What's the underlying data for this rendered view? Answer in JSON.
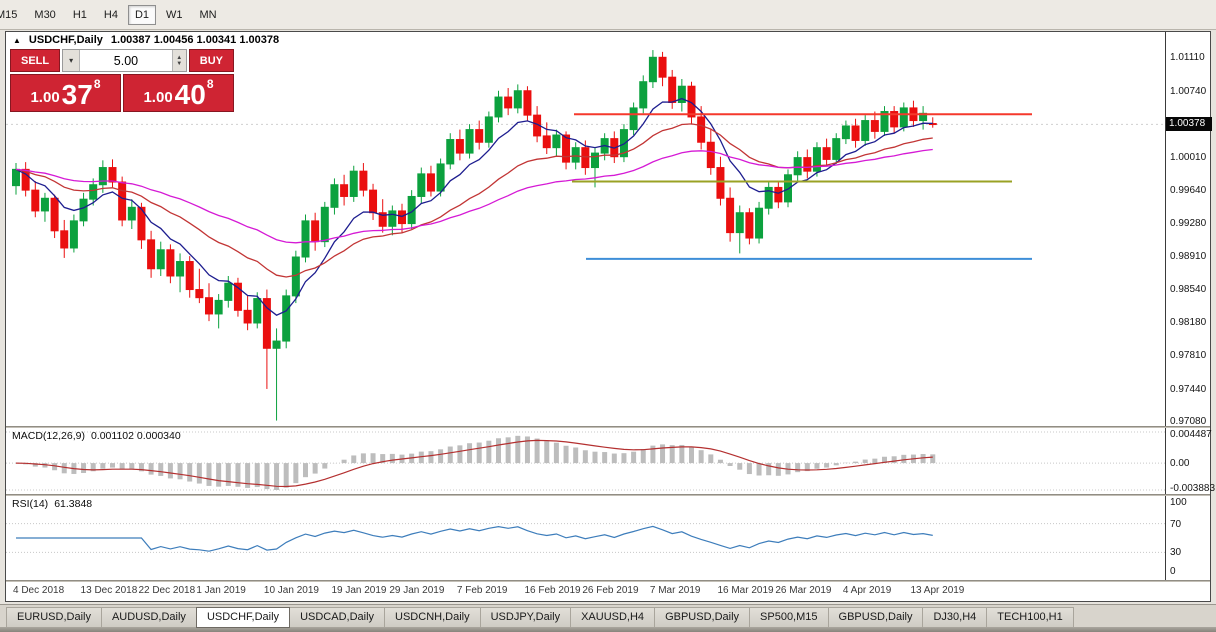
{
  "toolbar": {
    "timeframes": [
      {
        "label": "M15",
        "active": false
      },
      {
        "label": "M30",
        "active": false
      },
      {
        "label": "H1",
        "active": false
      },
      {
        "label": "H4",
        "active": false
      },
      {
        "label": "D1",
        "active": true
      },
      {
        "label": "W1",
        "active": false
      },
      {
        "label": "MN",
        "active": false
      }
    ]
  },
  "title": {
    "arrow": "▲",
    "symbol": "USDCHF,Daily",
    "ohlc": "1.00387 1.00456 1.00341 1.00378"
  },
  "trade": {
    "sell_label": "SELL",
    "buy_label": "BUY",
    "volume": "5.00",
    "sell_price": {
      "prefix": "1.00",
      "big": "37",
      "sup": "8"
    },
    "buy_price": {
      "prefix": "1.00",
      "big": "40",
      "sup": "8"
    },
    "accent": "#cf2433"
  },
  "chart_data": {
    "type": "candlestick",
    "symbol": "USDCHF",
    "timeframe": "Daily",
    "ohlc_display": {
      "open": "1.00387",
      "high": "1.00456",
      "low": "1.00341",
      "close": "1.00378"
    },
    "ylim": [
      0.9704,
      1.014
    ],
    "price_ticks": [
      "1.01110",
      "1.00740",
      "1.00370",
      "1.00010",
      "0.99640",
      "0.99280",
      "0.98910",
      "0.98540",
      "0.98180",
      "0.97810",
      "0.97440",
      "0.97080"
    ],
    "current_price": 1.00378,
    "current_price_label": "1.00378",
    "up_color": "#0ca13e",
    "down_color": "#ea0f0f",
    "moving_averages": [
      {
        "period": 8,
        "color": "#1d1d8f",
        "width": 1.3
      },
      {
        "period": 22,
        "color": "#c23535",
        "width": 1.3
      },
      {
        "period": 45,
        "color": "#d51ad5",
        "width": 1.3
      }
    ],
    "hlines": [
      {
        "price": 1.0049,
        "color": "#f5392c",
        "width": 2,
        "x1": 0.49,
        "x2": 0.885
      },
      {
        "price": 0.99745,
        "color": "#9aa224",
        "width": 2,
        "x1": 0.488,
        "x2": 0.868
      },
      {
        "price": 0.9889,
        "color": "#3e8ed8",
        "width": 2,
        "x1": 0.5,
        "x2": 0.885
      }
    ],
    "date_labels": [
      {
        "label": "4 Dec 2018",
        "bar": 0
      },
      {
        "label": "13 Dec 2018",
        "bar": 7
      },
      {
        "label": "22 Dec 2018",
        "bar": 13
      },
      {
        "label": "1 Jan 2019",
        "bar": 19
      },
      {
        "label": "10 Jan 2019",
        "bar": 26
      },
      {
        "label": "19 Jan 2019",
        "bar": 33
      },
      {
        "label": "29 Jan 2019",
        "bar": 39
      },
      {
        "label": "7 Feb 2019",
        "bar": 46
      },
      {
        "label": "16 Feb 2019",
        "bar": 53
      },
      {
        "label": "26 Feb 2019",
        "bar": 59
      },
      {
        "label": "7 Mar 2019",
        "bar": 66
      },
      {
        "label": "16 Mar 2019",
        "bar": 73
      },
      {
        "label": "26 Mar 2019",
        "bar": 79
      },
      {
        "label": "4 Apr 2019",
        "bar": 86
      },
      {
        "label": "13 Apr 2019",
        "bar": 93
      }
    ],
    "candles": [
      [
        0.997,
        0.9995,
        0.996,
        0.9988
      ],
      [
        0.9988,
        0.9996,
        0.9958,
        0.9965
      ],
      [
        0.9965,
        0.9975,
        0.9935,
        0.9942
      ],
      [
        0.9942,
        0.9962,
        0.993,
        0.9956
      ],
      [
        0.9956,
        0.996,
        0.9912,
        0.992
      ],
      [
        0.992,
        0.9932,
        0.989,
        0.9901
      ],
      [
        0.9901,
        0.9938,
        0.9896,
        0.9931
      ],
      [
        0.9931,
        0.9962,
        0.9925,
        0.9955
      ],
      [
        0.9955,
        0.9978,
        0.9948,
        0.9971
      ],
      [
        0.9971,
        0.9998,
        0.9962,
        0.999
      ],
      [
        0.999,
        0.9999,
        0.9968,
        0.9974
      ],
      [
        0.9974,
        0.998,
        0.9925,
        0.9932
      ],
      [
        0.9932,
        0.9955,
        0.9922,
        0.9946
      ],
      [
        0.9946,
        0.9951,
        0.99,
        0.991
      ],
      [
        0.991,
        0.992,
        0.9868,
        0.9878
      ],
      [
        0.9878,
        0.9908,
        0.987,
        0.9899
      ],
      [
        0.9899,
        0.9905,
        0.9862,
        0.987
      ],
      [
        0.987,
        0.9895,
        0.9852,
        0.9886
      ],
      [
        0.9886,
        0.9892,
        0.9846,
        0.9855
      ],
      [
        0.9855,
        0.9878,
        0.984,
        0.9846
      ],
      [
        0.9846,
        0.9862,
        0.982,
        0.9828
      ],
      [
        0.9828,
        0.985,
        0.9812,
        0.9843
      ],
      [
        0.9843,
        0.987,
        0.9835,
        0.9862
      ],
      [
        0.9862,
        0.9868,
        0.9825,
        0.9832
      ],
      [
        0.9832,
        0.9848,
        0.981,
        0.9818
      ],
      [
        0.9818,
        0.9852,
        0.9812,
        0.9845
      ],
      [
        0.9845,
        0.9855,
        0.9745,
        0.979
      ],
      [
        0.979,
        0.9812,
        0.971,
        0.9798
      ],
      [
        0.9798,
        0.9855,
        0.979,
        0.9848
      ],
      [
        0.9848,
        0.9898,
        0.984,
        0.9891
      ],
      [
        0.9891,
        0.9938,
        0.9885,
        0.9931
      ],
      [
        0.9931,
        0.994,
        0.9898,
        0.9908
      ],
      [
        0.9908,
        0.9952,
        0.9902,
        0.9946
      ],
      [
        0.9946,
        0.9978,
        0.9938,
        0.9971
      ],
      [
        0.9971,
        0.9982,
        0.9948,
        0.9958
      ],
      [
        0.9958,
        0.9992,
        0.9952,
        0.9986
      ],
      [
        0.9986,
        0.9995,
        0.9958,
        0.9965
      ],
      [
        0.9965,
        0.9972,
        0.9932,
        0.994
      ],
      [
        0.994,
        0.9955,
        0.9918,
        0.9925
      ],
      [
        0.9925,
        0.9948,
        0.9915,
        0.9942
      ],
      [
        0.9942,
        0.995,
        0.9918,
        0.9928
      ],
      [
        0.9928,
        0.9965,
        0.9922,
        0.9958
      ],
      [
        0.9958,
        0.999,
        0.995,
        0.9983
      ],
      [
        0.9983,
        0.9992,
        0.9958,
        0.9964
      ],
      [
        0.9964,
        1.0,
        0.9958,
        0.9994
      ],
      [
        0.9994,
        1.0028,
        0.9988,
        1.0021
      ],
      [
        1.0021,
        1.0032,
        0.9998,
        1.0006
      ],
      [
        1.0006,
        1.0038,
        1.0,
        1.0032
      ],
      [
        1.0032,
        1.0042,
        1.001,
        1.0018
      ],
      [
        1.0018,
        1.0052,
        1.0012,
        1.0046
      ],
      [
        1.0046,
        1.0075,
        1.004,
        1.0068
      ],
      [
        1.0068,
        1.0078,
        1.0048,
        1.0056
      ],
      [
        1.0056,
        1.0082,
        1.005,
        1.0075
      ],
      [
        1.0075,
        1.008,
        1.0042,
        1.0048
      ],
      [
        1.0048,
        1.0058,
        1.0018,
        1.0025
      ],
      [
        1.0025,
        1.004,
        1.0005,
        1.0012
      ],
      [
        1.0012,
        1.0032,
        1.0002,
        1.0026
      ],
      [
        1.0026,
        1.003,
        0.9988,
        0.9996
      ],
      [
        0.9996,
        1.0018,
        0.9988,
        1.0012
      ],
      [
        1.0012,
        1.002,
        0.9982,
        0.999
      ],
      [
        0.999,
        1.0012,
        0.9968,
        1.0006
      ],
      [
        1.0006,
        1.0028,
        0.9998,
        1.0022
      ],
      [
        1.0022,
        1.003,
        0.9995,
        1.0002
      ],
      [
        1.0002,
        1.0038,
        0.9996,
        1.0032
      ],
      [
        1.0032,
        1.0062,
        1.0026,
        1.0056
      ],
      [
        1.0056,
        1.0092,
        1.005,
        1.0085
      ],
      [
        1.0085,
        1.012,
        1.0078,
        1.0112
      ],
      [
        1.0112,
        1.0118,
        1.008,
        1.009
      ],
      [
        1.009,
        1.0098,
        1.0055,
        1.0062
      ],
      [
        1.0062,
        1.0088,
        1.0052,
        1.008
      ],
      [
        1.008,
        1.0085,
        1.0038,
        1.0046
      ],
      [
        1.0046,
        1.0058,
        1.001,
        1.0018
      ],
      [
        1.0018,
        1.0032,
        0.9982,
        0.999
      ],
      [
        0.999,
        1.0002,
        0.9948,
        0.9956
      ],
      [
        0.9956,
        0.9968,
        0.9908,
        0.9918
      ],
      [
        0.9918,
        0.9948,
        0.9895,
        0.994
      ],
      [
        0.994,
        0.9945,
        0.9905,
        0.9912
      ],
      [
        0.9912,
        0.9952,
        0.9906,
        0.9945
      ],
      [
        0.9945,
        0.9975,
        0.9938,
        0.9968
      ],
      [
        0.9968,
        0.9975,
        0.9945,
        0.9952
      ],
      [
        0.9952,
        0.9988,
        0.9946,
        0.9982
      ],
      [
        0.9982,
        1.0008,
        0.9975,
        1.0001
      ],
      [
        1.0001,
        1.001,
        0.9978,
        0.9986
      ],
      [
        0.9986,
        1.0018,
        0.998,
        1.0012
      ],
      [
        1.0012,
        1.0022,
        0.9992,
        0.9999
      ],
      [
        0.9999,
        1.0028,
        0.9994,
        1.0022
      ],
      [
        1.0022,
        1.0042,
        1.0016,
        1.0036
      ],
      [
        1.0036,
        1.0044,
        1.0012,
        1.002
      ],
      [
        1.002,
        1.0048,
        1.0014,
        1.0042
      ],
      [
        1.0042,
        1.0052,
        1.0022,
        1.003
      ],
      [
        1.003,
        1.0058,
        1.0025,
        1.0052
      ],
      [
        1.0052,
        1.0058,
        1.0028,
        1.0035
      ],
      [
        1.0035,
        1.0062,
        1.003,
        1.0056
      ],
      [
        1.0056,
        1.0064,
        1.0035,
        1.0042
      ],
      [
        1.0042,
        1.0058,
        1.0032,
        1.005
      ],
      [
        1.00387,
        1.00456,
        1.00341,
        1.00378
      ]
    ]
  },
  "macd": {
    "label": "MACD(12,26,9)",
    "value_text": "0.001102 0.000340",
    "fast": 12,
    "slow": 26,
    "signal": 9,
    "ylim": [
      -0.003883,
      0.004487
    ],
    "axis_ticks": [
      "0.004487",
      "0.00",
      "-0.003883"
    ],
    "histogram_color": "#bdbdbd",
    "signal_color": "#b43030"
  },
  "rsi": {
    "label": "RSI(14)",
    "value_text": "61.3848",
    "period": 14,
    "levels": [
      100,
      70,
      30,
      0
    ],
    "dotted_levels": [
      70,
      30
    ],
    "line_color": "#3d7dbb"
  },
  "tabs": {
    "items": [
      {
        "label": "EURUSD,Daily",
        "active": false
      },
      {
        "label": "AUDUSD,Daily",
        "active": false
      },
      {
        "label": "USDCHF,Daily",
        "active": true
      },
      {
        "label": "USDCAD,Daily",
        "active": false
      },
      {
        "label": "USDCNH,Daily",
        "active": false
      },
      {
        "label": "USDJPY,Daily",
        "active": false
      },
      {
        "label": "XAUUSD,H4",
        "active": false
      },
      {
        "label": "GBPUSD,Daily",
        "active": false
      },
      {
        "label": "SP500,M15",
        "active": false
      },
      {
        "label": "GBPUSD,Daily",
        "active": false
      },
      {
        "label": "DJ30,H4",
        "active": false
      },
      {
        "label": "TECH100,H1",
        "active": false
      }
    ]
  }
}
